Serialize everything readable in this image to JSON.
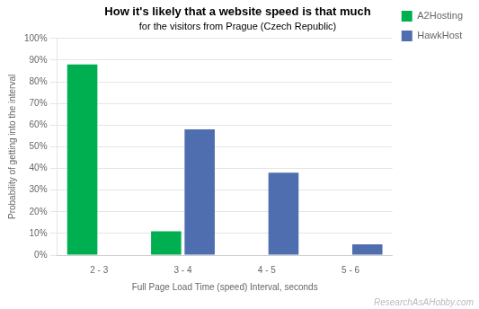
{
  "chart_data": {
    "type": "bar",
    "title": "How it's likely that a website speed is that much",
    "subtitle": "for the visitors from Prague (Czech Republic)",
    "x_label": "Full Page Load Time (speed) Interval, seconds",
    "y_label": "Probability of getting into the interval",
    "categories": [
      "2 - 3",
      "3 - 4",
      "4 - 5",
      "5 - 6"
    ],
    "series": [
      {
        "name": "A2Hosting",
        "color": "#00b050",
        "values": [
          88,
          11,
          0,
          0
        ]
      },
      {
        "name": "HawkHost",
        "color": "#4f6eb0",
        "values": [
          0,
          58,
          38,
          5
        ]
      }
    ],
    "ylim": [
      0,
      100
    ],
    "yticks": [
      {
        "value": 0,
        "label": "0%"
      },
      {
        "value": 10,
        "label": "10%"
      },
      {
        "value": 20,
        "label": "20%"
      },
      {
        "value": 30,
        "label": "30%"
      },
      {
        "value": 40,
        "label": "40%"
      },
      {
        "value": 50,
        "label": "50%"
      },
      {
        "value": 60,
        "label": "60%"
      },
      {
        "value": 70,
        "label": "70%"
      },
      {
        "value": 80,
        "label": "80%"
      },
      {
        "value": 90,
        "label": "90%"
      },
      {
        "value": 100,
        "label": "100%"
      }
    ],
    "grid": true,
    "legend": "right",
    "annotations": [
      "ResearchAsAHobby.com"
    ]
  }
}
